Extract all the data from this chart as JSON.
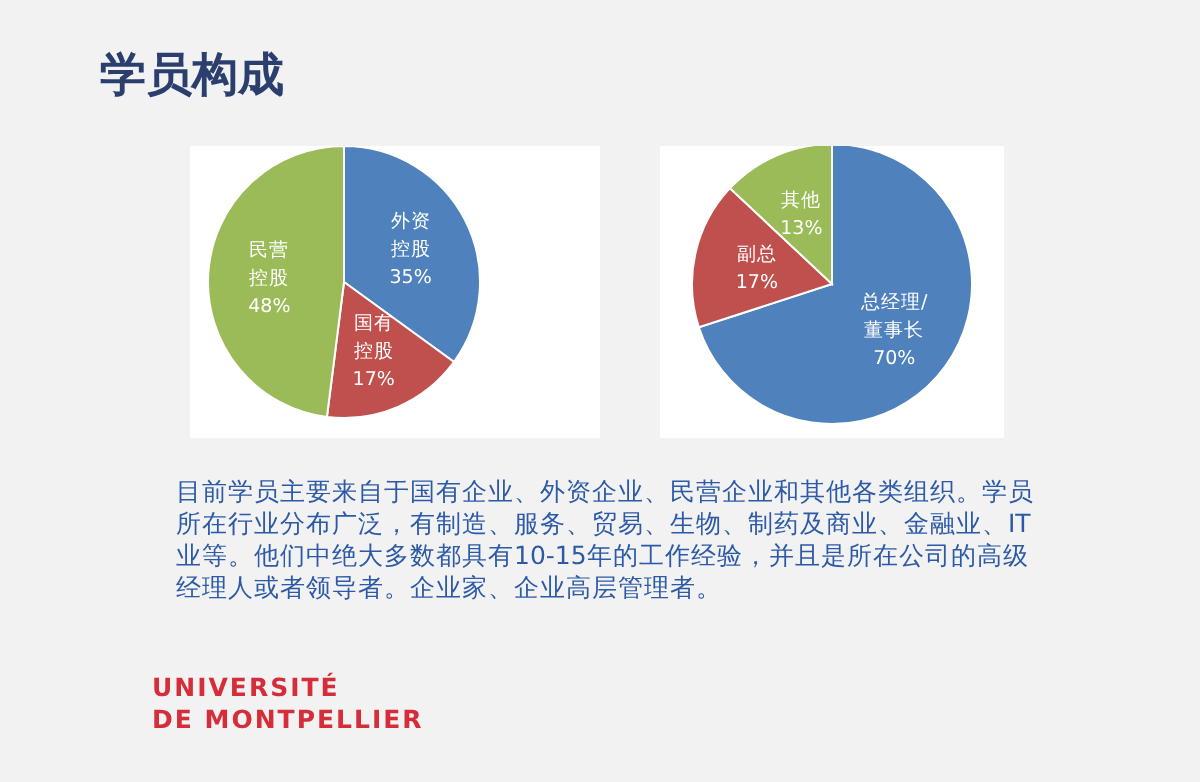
{
  "chart_data": [
    {
      "type": "pie",
      "title": "学员构成",
      "categories": [
        "外资控股",
        "国有控股",
        "民营控股"
      ],
      "values": [
        35,
        17,
        48
      ],
      "value_labels": [
        "35%",
        "17%",
        "48%"
      ],
      "colors": [
        "#4f81bd",
        "#c0504d",
        "#9bbb59"
      ]
    },
    {
      "type": "pie",
      "categories": [
        "总经理/董事长",
        "副总",
        "其他"
      ],
      "values": [
        70,
        17,
        13
      ],
      "value_labels": [
        "70%",
        "17%",
        "13%"
      ],
      "colors": [
        "#4f81bd",
        "#c0504d",
        "#9bbb59"
      ]
    },
    {
      "type": "other",
      "annotations": [
        "目前学员主要来自于国有企业、外资企业、民营企业和其他各类组织。学员所在行业分布广泛，有制造、服务、贸易、生物、制药及商业、金融业、IT业等。他们中绝大多数都具有10-15年的工作经验，并且是所在公司的高级经理人或者领导者。企业家、企业高层管理者。",
        "UNIVERSITÉ",
        "DE MONTPELLIER"
      ]
    }
  ]
}
